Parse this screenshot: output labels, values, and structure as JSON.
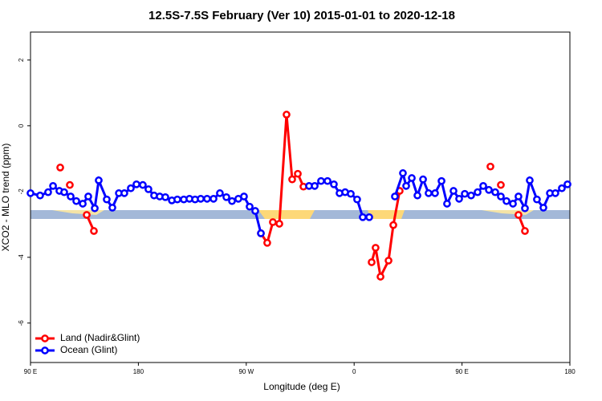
{
  "chart_data": {
    "type": "line",
    "title": "12.5S-7.5S February (Ver 10)   2015-01-01 to 2020-12-18",
    "x_label": "Longitude (deg E)",
    "y_label": "XCO2 - MLO trend (ppm)",
    "xlim": [
      90,
      540
    ],
    "ylim": [
      -7.2,
      2.85
    ],
    "xticks": [
      {
        "value": 90,
        "label": "90 E"
      },
      {
        "value": 180,
        "label": "180"
      },
      {
        "value": 270,
        "label": "90 W"
      },
      {
        "value": 360,
        "label": "0"
      },
      {
        "value": 450,
        "label": "90 E"
      },
      {
        "value": 540,
        "label": "180"
      }
    ],
    "yticks": [
      -6,
      -4,
      -2,
      0,
      2
    ],
    "legend": "bottom-left",
    "series": [
      {
        "name": "Land (Nadir&Glint)",
        "color": "#ff0000",
        "x": [
          114.8,
          null,
          122.8,
          null,
          136.9,
          142.9,
          null,
          282.2,
          287.5,
          292.2,
          297.6,
          303.6,
          308.3,
          313.0,
          317.7,
          null,
          374.6,
          377.9,
          382.0,
          388.7,
          392.7,
          398.0,
          null,
          473.7,
          null,
          482.4,
          null,
          497.1,
          502.5
        ],
        "values": [
          -1.27,
          null,
          -1.8,
          null,
          -2.71,
          -3.2,
          null,
          -3.27,
          -3.56,
          -2.93,
          -2.98,
          0.34,
          -1.63,
          -1.46,
          -1.85,
          null,
          -4.15,
          -3.71,
          -4.59,
          -4.1,
          -3.02,
          -1.98,
          null,
          -1.24,
          null,
          -1.8,
          null,
          -2.71,
          -3.2
        ]
      },
      {
        "name": "Ocean (Glint)",
        "color": "#0000ff",
        "x": [
          90.0,
          98.0,
          104.7,
          108.8,
          114.1,
          118.1,
          123.5,
          128.2,
          133.6,
          138.2,
          143.6,
          146.9,
          153.6,
          158.3,
          163.7,
          168.3,
          173.7,
          178.4,
          183.7,
          188.4,
          193.1,
          197.8,
          202.5,
          207.9,
          212.5,
          217.9,
          222.6,
          227.3,
          232.0,
          237.3,
          242.7,
          248.0,
          253.4,
          258.1,
          263.4,
          268.1,
          272.8,
          277.5,
          282.2,
          null,
          322.4,
          327.1,
          332.4,
          337.8,
          343.1,
          347.8,
          352.5,
          357.2,
          362.5,
          367.2,
          372.6,
          null,
          394.0,
          400.7,
          403.4,
          408.1,
          412.8,
          417.5,
          422.1,
          427.5,
          432.9,
          437.5,
          442.9,
          447.6,
          452.3,
          457.6,
          463.0,
          467.7,
          472.4,
          477.7,
          482.4,
          487.1,
          492.5,
          497.1,
          502.5,
          506.5,
          512.5,
          517.9,
          523.3,
          527.9,
          533.3,
          538.0
        ],
        "values": [
          -2.05,
          -2.12,
          -2.02,
          -1.83,
          -1.98,
          -2.02,
          -2.15,
          -2.29,
          -2.37,
          -2.15,
          -2.51,
          -1.66,
          -2.24,
          -2.49,
          -2.05,
          -2.05,
          -1.9,
          -1.78,
          -1.8,
          -1.93,
          -2.12,
          -2.15,
          -2.17,
          -2.27,
          -2.24,
          -2.24,
          -2.22,
          -2.24,
          -2.22,
          -2.22,
          -2.22,
          -2.05,
          -2.17,
          -2.29,
          -2.22,
          -2.15,
          -2.46,
          -2.59,
          -3.27,
          null,
          -1.83,
          -1.83,
          -1.68,
          -1.68,
          -1.78,
          -2.05,
          -2.02,
          -2.07,
          -2.24,
          -2.78,
          -2.78,
          null,
          -2.15,
          -1.44,
          -1.83,
          -1.59,
          -2.12,
          -1.63,
          -2.05,
          -2.05,
          -1.68,
          -2.37,
          -1.98,
          -2.22,
          -2.07,
          -2.12,
          -2.02,
          -1.83,
          -1.95,
          -2.02,
          -2.15,
          -2.29,
          -2.37,
          -2.15,
          -2.51,
          -1.66,
          -2.24,
          -2.49,
          -2.05,
          -2.05,
          -1.9,
          -1.78
        ]
      }
    ]
  }
}
